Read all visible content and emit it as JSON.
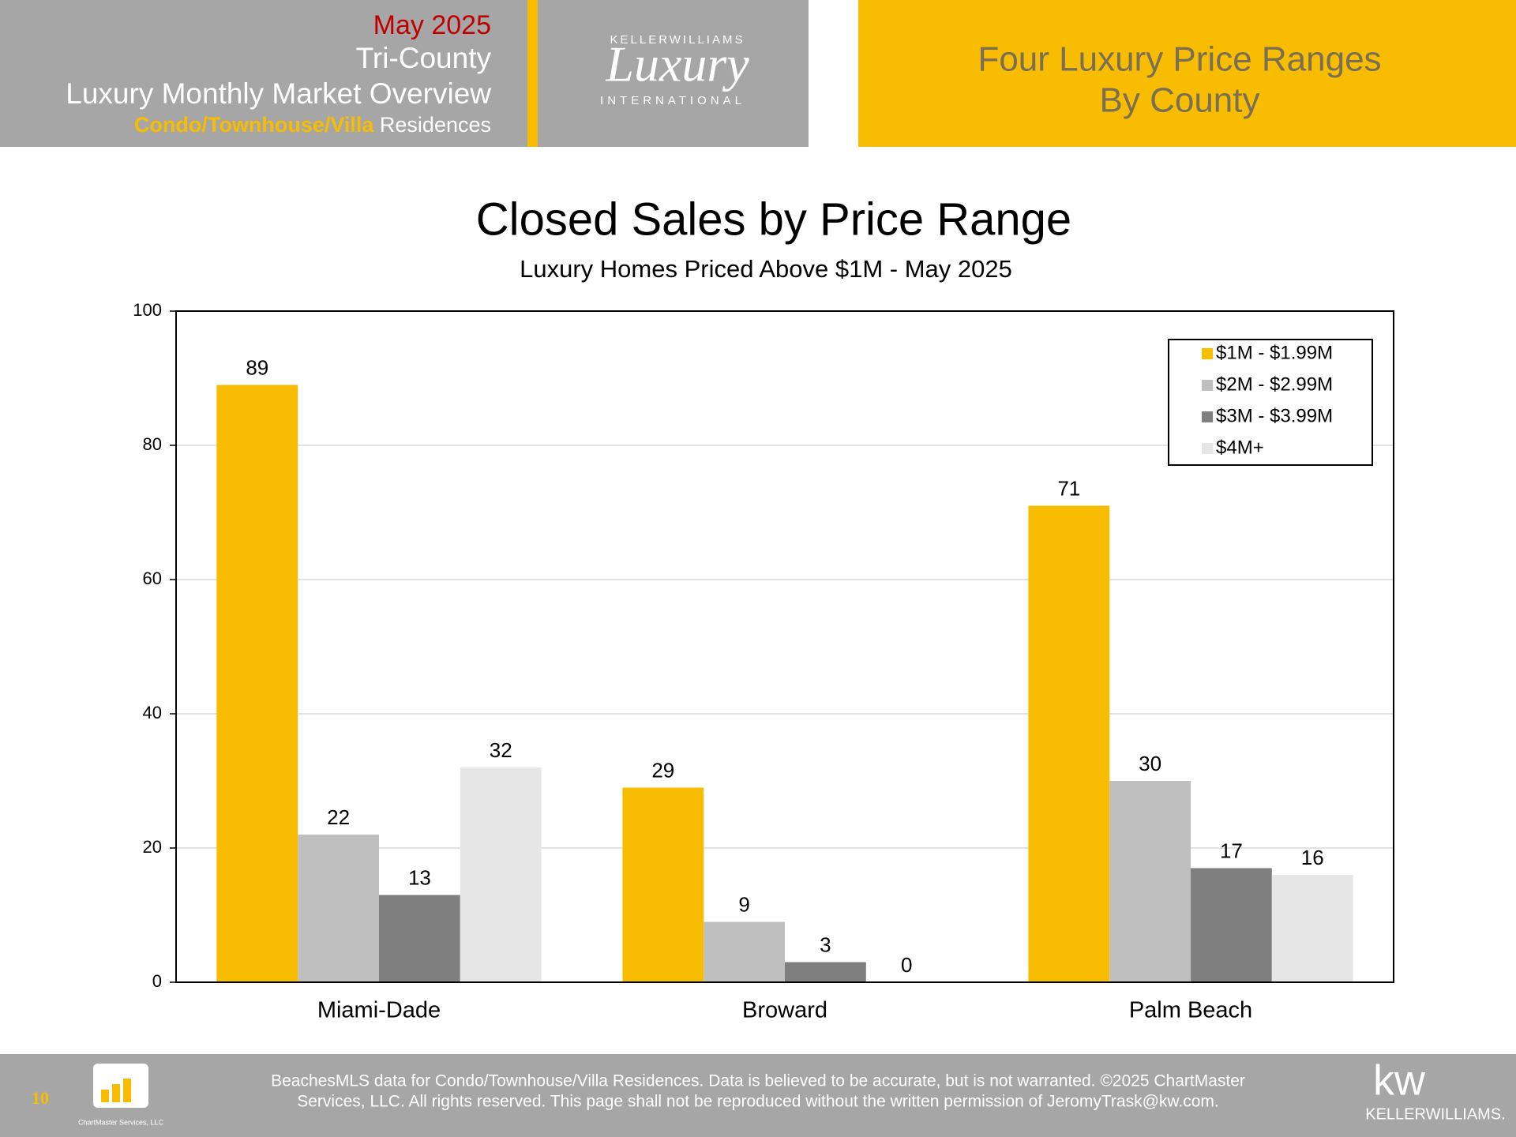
{
  "header": {
    "date": "May 2025",
    "region": "Tri-County",
    "title": "Luxury Monthly Market Overview",
    "subtitle_highlight": "Condo/Townhouse/Villa",
    "subtitle_rest": "Residences"
  },
  "logo": {
    "top": "KELLERWILLIAMS",
    "main": "Luxury",
    "bottom": "INTERNATIONAL"
  },
  "banner": {
    "line1": "Four Luxury Price Ranges",
    "line2": "By County"
  },
  "chart_data": {
    "type": "bar",
    "title": "Closed Sales by Price Range",
    "subtitle": "Luxury Homes Priced Above $1M - May 2025",
    "categories": [
      "Miami-Dade",
      "Broward",
      "Palm Beach"
    ],
    "series": [
      {
        "name": "$1M - $1.99M",
        "color": "#f8bd00",
        "values": [
          89,
          29,
          71
        ]
      },
      {
        "name": "$2M - $2.99M",
        "color": "#bfbfbf",
        "values": [
          22,
          9,
          30
        ]
      },
      {
        "name": "$3M - $3.99M",
        "color": "#7f7f7f",
        "values": [
          13,
          3,
          17
        ]
      },
      {
        "name": "$4M+",
        "color": "#e6e6e6",
        "values": [
          32,
          0,
          16
        ]
      }
    ],
    "ylim": [
      0,
      100
    ],
    "yticks": [
      0,
      20,
      40,
      60,
      80,
      100
    ],
    "grid": true,
    "legend": "top-right"
  },
  "footer": {
    "page_number": "10",
    "chartmaster_label": "ChartMaster Services, LLC",
    "line1": "BeachesMLS data for Condo/Townhouse/Villa Residences.  Data is believed to be accurate, but is not warranted.   ©2025  ChartMaster",
    "line2": "Services, LLC.  All rights reserved. This page shall not be reproduced without the written permission of JeromyTrask@kw.com.",
    "kw": "kw",
    "brand": "KELLERWILLIAMS."
  }
}
